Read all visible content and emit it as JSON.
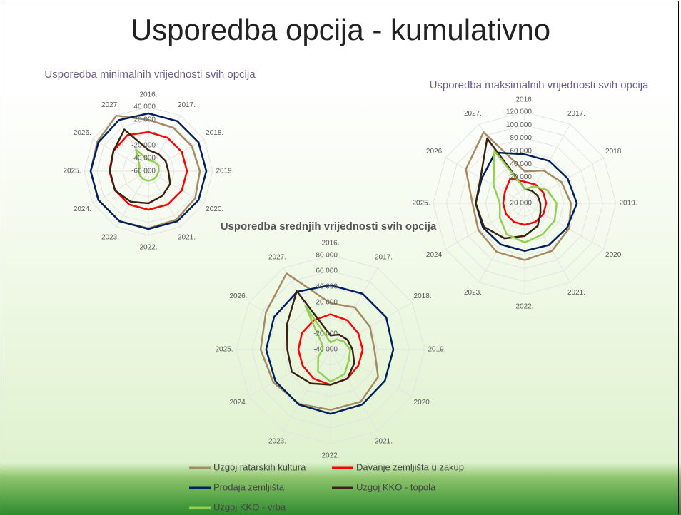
{
  "title": "Usporedba opcija - kumulativno",
  "chart_data": [
    {
      "type": "radar",
      "title": "Usporedba minimalnih vrijednosti svih opcija",
      "categories": [
        "2016.",
        "2017.",
        "2018.",
        "2019.",
        "2020.",
        "2021.",
        "2022.",
        "2023.",
        "2024.",
        "2025.",
        "2026.",
        "2027."
      ],
      "ylim": [
        -60000,
        40000
      ],
      "yticks": [
        {
          "value": -60000,
          "label": "-60 000"
        },
        {
          "value": -40000,
          "label": "-40 000"
        },
        {
          "value": -20000,
          "label": "-20 000"
        },
        {
          "value": 0,
          "label": "-"
        },
        {
          "value": 20000,
          "label": "20 000"
        },
        {
          "value": 40000,
          "label": "40 000"
        }
      ],
      "series": [
        {
          "name": "Uzgoj ratarskih kultura",
          "color": "#a68a64",
          "values": [
            20000,
            18000,
            18000,
            20000,
            24000,
            27000,
            29000,
            30000,
            30000,
            30000,
            32000,
            40000
          ]
        },
        {
          "name": "Davanje zemljišta u zakup",
          "color": "#ff0000",
          "values": [
            1000,
            0,
            0,
            0,
            0,
            0,
            0,
            0,
            0,
            1000,
            3000,
            5000
          ]
        },
        {
          "name": "Prodaja zemljišta",
          "color": "#002060",
          "values": [
            30000,
            30000,
            30000,
            30000,
            30000,
            30000,
            30000,
            30000,
            30000,
            30000,
            30000,
            32000
          ]
        },
        {
          "name": "Uzgoj KKO - topola",
          "color": "#3b2314",
          "values": [
            -27000,
            -29000,
            -29000,
            -29000,
            -21000,
            -16000,
            -10000,
            -5000,
            0,
            0,
            3000,
            15000
          ]
        },
        {
          "name": "Uzgoj KKO - vrba",
          "color": "#92d050",
          "values": [
            -43000,
            -43000,
            -42000,
            -44000,
            -45000,
            -45000,
            -45000,
            -45000,
            -45000,
            -45000,
            -44000,
            -21000
          ]
        }
      ]
    },
    {
      "type": "radar",
      "title": "Usporedba maksimalnih vrijednosti svih opcija",
      "categories": [
        "2016.",
        "2017.",
        "2018.",
        "2019.",
        "2020.",
        "2021.",
        "2022.",
        "2023.",
        "2024.",
        "2025.",
        "2026.",
        "2027."
      ],
      "ylim": [
        -20000,
        120000
      ],
      "yticks": [
        {
          "value": -20000,
          "label": "-20 000"
        },
        {
          "value": 0,
          "label": "-"
        },
        {
          "value": 20000,
          "label": "20 000"
        },
        {
          "value": 40000,
          "label": "40 000"
        },
        {
          "value": 60000,
          "label": "60 000"
        },
        {
          "value": 80000,
          "label": "80 000"
        },
        {
          "value": 100000,
          "label": "100 000"
        },
        {
          "value": 120000,
          "label": "120 000"
        }
      ],
      "series": [
        {
          "name": "Uzgoj ratarskih kultura",
          "color": "#a68a64",
          "values": [
            29000,
            38000,
            45000,
            51000,
            58000,
            64000,
            67000,
            66000,
            62000,
            60000,
            84000,
            106000
          ]
        },
        {
          "name": "Davanje zemljišta u zakup",
          "color": "#ff0000",
          "values": [
            13000,
            13000,
            13000,
            13000,
            13000,
            13000,
            13000,
            13000,
            13000,
            13000,
            15000,
            24000
          ]
        },
        {
          "name": "Prodaja zemljišta",
          "color": "#002060",
          "values": [
            55000,
            55000,
            56000,
            60000,
            55000,
            54000,
            53000,
            53000,
            54000,
            55000,
            56000,
            70000
          ]
        },
        {
          "name": "Uzgoj KKO - topola",
          "color": "#3b2314",
          "values": [
            2000,
            2000,
            3000,
            4000,
            8000,
            20000,
            30000,
            42000,
            52000,
            55000,
            58000,
            95000
          ]
        },
        {
          "name": "Uzgoj KKO - vrba",
          "color": "#92d050",
          "values": [
            2000,
            10000,
            20000,
            29000,
            33000,
            35000,
            40000,
            35000,
            24000,
            18000,
            35000,
            73000
          ]
        }
      ]
    },
    {
      "type": "radar",
      "title": "Usporedba srednjih vrijednosti svih opcija",
      "categories": [
        "2016.",
        "2017.",
        "2018.",
        "2019.",
        "2020.",
        "2021.",
        "2022.",
        "2023.",
        "2024.",
        "2025.",
        "2026.",
        "2027."
      ],
      "ylim": [
        -40000,
        80000
      ],
      "yticks": [
        {
          "value": -40000,
          "label": "-40 000"
        },
        {
          "value": -20000,
          "label": "-20 000"
        },
        {
          "value": 0,
          "label": "-"
        },
        {
          "value": 20000,
          "label": "20 000"
        },
        {
          "value": 40000,
          "label": "40 000"
        },
        {
          "value": 60000,
          "label": "60 000"
        },
        {
          "value": 80000,
          "label": "80 000"
        }
      ],
      "series": [
        {
          "name": "Uzgoj ratarskih kultura",
          "color": "#a68a64",
          "values": [
            19000,
            22000,
            18000,
            16000,
            30000,
            37000,
            37000,
            40000,
            44000,
            49000,
            55000,
            72000
          ]
        },
        {
          "name": "Davanje zemljišta u zakup",
          "color": "#ff0000",
          "values": [
            5000,
            3000,
            1000,
            1000,
            1000,
            3000,
            5000,
            3000,
            1000,
            1000,
            2000,
            3000
          ]
        },
        {
          "name": "Prodaja zemljišta",
          "color": "#002060",
          "values": [
            42000,
            42000,
            42000,
            40000,
            40000,
            41000,
            42000,
            41000,
            41000,
            42000,
            43000,
            45000
          ]
        },
        {
          "name": "Uzgoj KKO - topola",
          "color": "#3b2314",
          "values": [
            -22000,
            -18000,
            -15000,
            -12000,
            -5000,
            3000,
            5000,
            10000,
            17000,
            15000,
            24000,
            46000
          ]
        },
        {
          "name": "Uzgoj KKO - vrba",
          "color": "#92d050",
          "values": [
            -31000,
            -25000,
            -20000,
            -15000,
            -13000,
            -4000,
            1000,
            -8000,
            -22000,
            -30000,
            -28000,
            24000
          ]
        }
      ]
    }
  ]
}
